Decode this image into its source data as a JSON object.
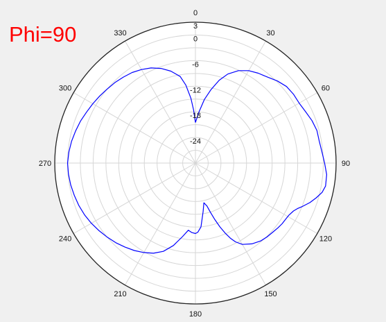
{
  "chart_data": {
    "type": "polar-line",
    "annotation": "Phi=90",
    "angle_ticks": [
      0,
      30,
      60,
      90,
      120,
      150,
      180,
      210,
      240,
      270,
      300,
      330
    ],
    "angle_direction": "clockwise",
    "zero_at": "top",
    "radial_range": [
      -30,
      3
    ],
    "radial_ticks": [
      3,
      0,
      -6,
      -12,
      -18,
      -24
    ],
    "grid": true,
    "series": [
      {
        "color": "#0000ff",
        "theta": [
          0,
          4,
          8,
          12,
          16,
          20,
          25,
          30,
          35,
          40,
          45,
          50,
          55,
          60,
          65,
          70,
          75,
          80,
          85,
          90,
          95,
          100,
          103,
          106,
          109,
          112,
          114,
          116,
          119,
          122,
          125,
          128,
          132,
          136,
          140,
          145,
          150,
          153,
          155,
          157,
          159,
          161,
          163,
          165,
          168,
          171,
          175,
          178,
          180,
          183,
          186,
          190,
          195,
          200,
          205,
          210,
          215,
          220,
          225,
          230,
          235,
          240,
          245,
          250,
          255,
          260,
          265,
          270,
          275,
          280,
          285,
          290,
          295,
          300,
          305,
          310,
          315,
          320,
          325,
          330,
          335,
          340,
          345,
          350,
          353,
          356,
          358,
          360
        ],
        "r": [
          -20.5,
          -18.0,
          -15.0,
          -12.4,
          -9.8,
          -7.8,
          -6.1,
          -5.0,
          -4.3,
          -3.7,
          -2.8,
          -2.1,
          -1.9,
          -1.9,
          -1.5,
          -0.9,
          -0.5,
          -0.5,
          -0.2,
          0.3,
          0.9,
          1.0,
          0.5,
          -0.5,
          -1.6,
          -2.9,
          -3.8,
          -4.4,
          -4.9,
          -5.1,
          -5.2,
          -5.4,
          -5.7,
          -5.9,
          -6.2,
          -6.9,
          -8.0,
          -9.3,
          -10.6,
          -12.2,
          -14.0,
          -16.0,
          -17.9,
          -19.6,
          -20.5,
          -18.5,
          -15.0,
          -13.8,
          -13.5,
          -13.7,
          -14.2,
          -12.5,
          -10.0,
          -8.0,
          -6.7,
          -5.8,
          -5.0,
          -4.3,
          -3.6,
          -3.0,
          -2.4,
          -1.8,
          -1.3,
          -0.9,
          -0.6,
          -0.3,
          -0.1,
          0.0,
          -0.2,
          -0.5,
          -0.9,
          -1.3,
          -1.8,
          -2.2,
          -2.6,
          -3.0,
          -3.3,
          -3.7,
          -4.1,
          -4.7,
          -5.4,
          -6.4,
          -7.7,
          -9.4,
          -11.6,
          -14.8,
          -17.5,
          -20.5
        ]
      }
    ]
  }
}
